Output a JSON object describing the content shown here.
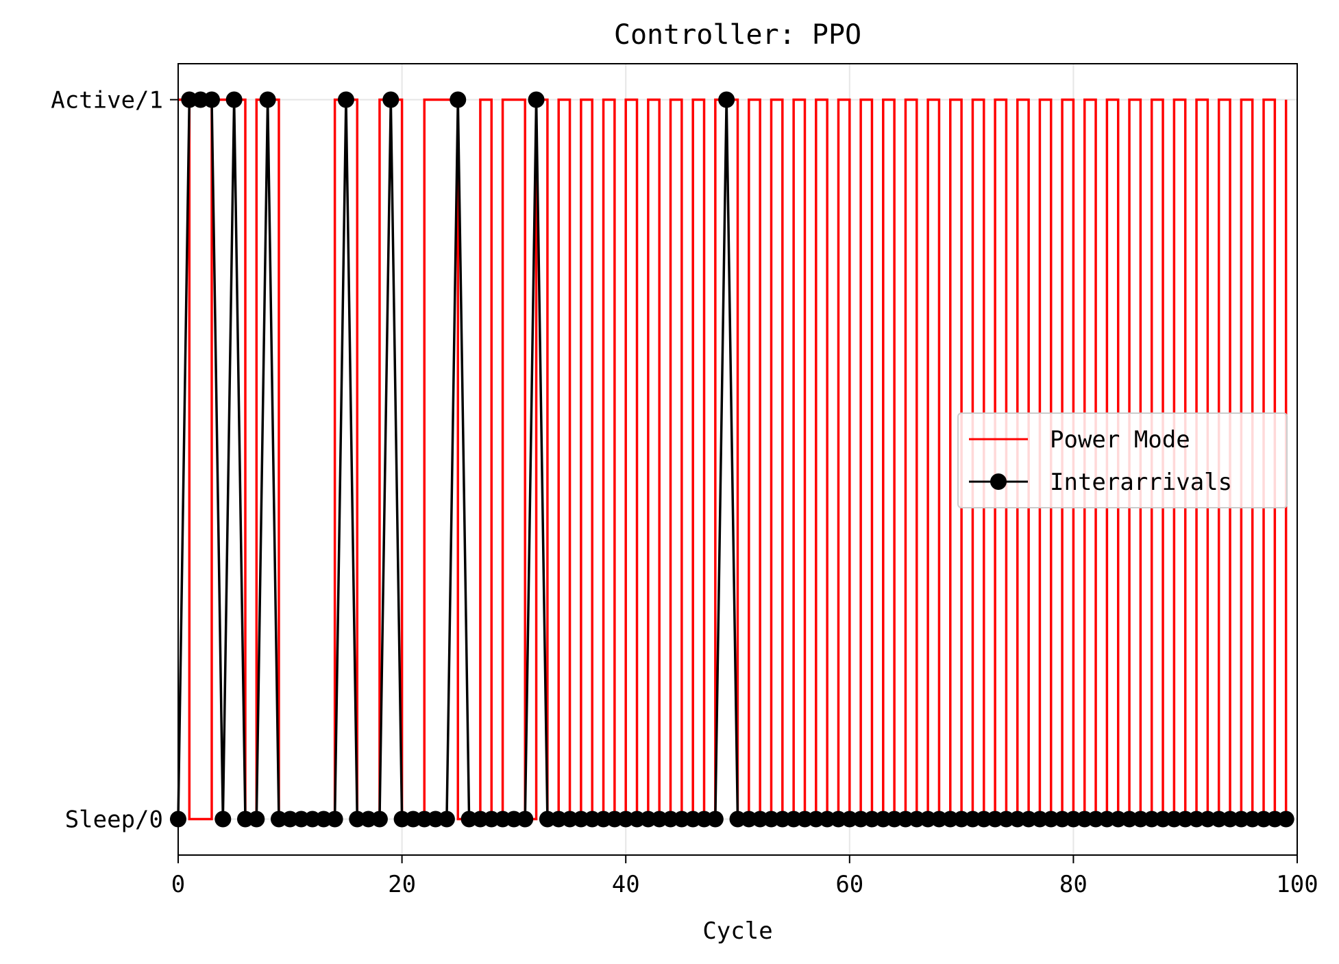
{
  "chart_data": {
    "type": "line",
    "title": "Controller: PPO",
    "xlabel": "Cycle",
    "ylabel": "",
    "xlim": [
      0,
      100
    ],
    "ylim": [
      -0.05,
      1.05
    ],
    "xticks": [
      0,
      20,
      40,
      60,
      80,
      100
    ],
    "xtick_labels": [
      "0",
      "20",
      "40",
      "60",
      "80",
      "100"
    ],
    "yticks": [
      0,
      1
    ],
    "ytick_labels": [
      "Sleep/0",
      "Active/1"
    ],
    "grid": true,
    "legend_position": "center-right",
    "series": [
      {
        "name": "Power Mode",
        "style": "step-post",
        "color": "#ff0000",
        "x": [
          0,
          1,
          2,
          3,
          4,
          5,
          6,
          7,
          8,
          9,
          10,
          11,
          12,
          13,
          14,
          15,
          16,
          17,
          18,
          19,
          20,
          21,
          22,
          23,
          24,
          25,
          26,
          27,
          28,
          29,
          30,
          31,
          32,
          33,
          34,
          35,
          36,
          37,
          38,
          39,
          40,
          41,
          42,
          43,
          44,
          45,
          46,
          47,
          48,
          49,
          50,
          51,
          52,
          53,
          54,
          55,
          56,
          57,
          58,
          59,
          60,
          61,
          62,
          63,
          64,
          65,
          66,
          67,
          68,
          69,
          70,
          71,
          72,
          73,
          74,
          75,
          76,
          77,
          78,
          79,
          80,
          81,
          82,
          83,
          84,
          85,
          86,
          87,
          88,
          89,
          90,
          91,
          92,
          93,
          94,
          95,
          96,
          97,
          98,
          99
        ],
        "values": [
          1,
          0,
          0,
          1,
          1,
          1,
          0,
          1,
          1,
          0,
          0,
          0,
          0,
          0,
          1,
          1,
          0,
          0,
          1,
          1,
          0,
          0,
          1,
          1,
          1,
          0,
          0,
          1,
          0,
          1,
          1,
          0,
          1,
          0,
          1,
          0,
          1,
          0,
          1,
          0,
          1,
          0,
          1,
          0,
          1,
          0,
          1,
          0,
          1,
          1,
          0,
          1,
          0,
          1,
          0,
          1,
          0,
          1,
          0,
          1,
          0,
          1,
          0,
          1,
          0,
          1,
          0,
          1,
          0,
          1,
          0,
          1,
          0,
          1,
          0,
          1,
          0,
          1,
          0,
          1,
          0,
          1,
          0,
          1,
          0,
          1,
          0,
          1,
          0,
          1,
          0,
          1,
          0,
          1,
          0,
          1,
          0,
          1,
          0,
          1
        ]
      },
      {
        "name": "Interarrivals",
        "style": "line-marker",
        "color": "#000000",
        "x": [
          0,
          1,
          2,
          3,
          4,
          5,
          6,
          7,
          8,
          9,
          10,
          11,
          12,
          13,
          14,
          15,
          16,
          17,
          18,
          19,
          20,
          21,
          22,
          23,
          24,
          25,
          26,
          27,
          28,
          29,
          30,
          31,
          32,
          33,
          34,
          35,
          36,
          37,
          38,
          39,
          40,
          41,
          42,
          43,
          44,
          45,
          46,
          47,
          48,
          49,
          50,
          51,
          52,
          53,
          54,
          55,
          56,
          57,
          58,
          59,
          60,
          61,
          62,
          63,
          64,
          65,
          66,
          67,
          68,
          69,
          70,
          71,
          72,
          73,
          74,
          75,
          76,
          77,
          78,
          79,
          80,
          81,
          82,
          83,
          84,
          85,
          86,
          87,
          88,
          89,
          90,
          91,
          92,
          93,
          94,
          95,
          96,
          97,
          98,
          99
        ],
        "values": [
          0,
          1,
          1,
          1,
          0,
          1,
          0,
          0,
          1,
          0,
          0,
          0,
          0,
          0,
          0,
          1,
          0,
          0,
          0,
          1,
          0,
          0,
          0,
          0,
          0,
          1,
          0,
          0,
          0,
          0,
          0,
          0,
          1,
          0,
          0,
          0,
          0,
          0,
          0,
          0,
          0,
          0,
          0,
          0,
          0,
          0,
          0,
          0,
          0,
          1,
          0,
          0,
          0,
          0,
          0,
          0,
          0,
          0,
          0,
          0,
          0,
          0,
          0,
          0,
          0,
          0,
          0,
          0,
          0,
          0,
          0,
          0,
          0,
          0,
          0,
          0,
          0,
          0,
          0,
          0,
          0,
          0,
          0,
          0,
          0,
          0,
          0,
          0,
          0,
          0,
          0,
          0,
          0,
          0,
          0,
          0,
          0,
          0,
          0,
          0
        ]
      }
    ]
  }
}
